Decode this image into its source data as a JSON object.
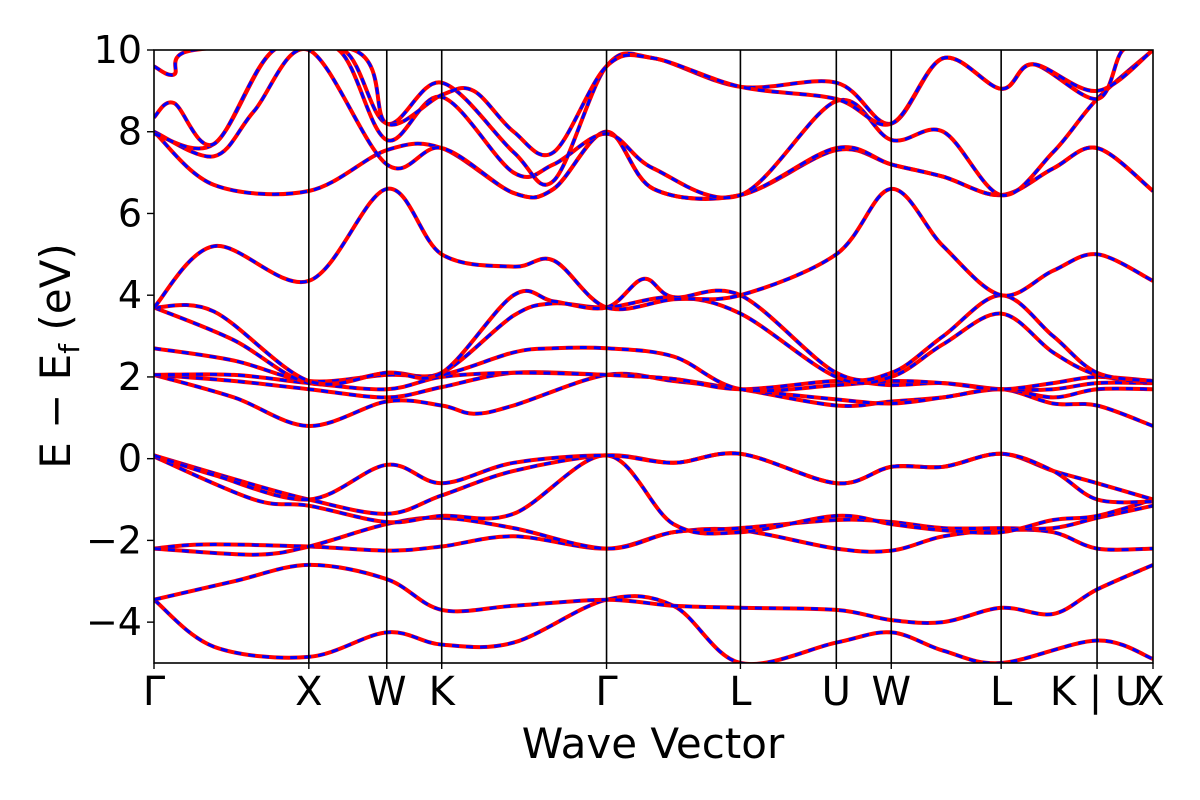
{
  "chart_data": {
    "type": "line",
    "title": "",
    "xlabel": "Wave Vector",
    "ylabel": "E − E",
    "ylabel_subscript": "f",
    "ylabel_unit": "(eV)",
    "ylim": [
      -5,
      10
    ],
    "yticks": [
      -4,
      -2,
      0,
      2,
      4,
      6,
      8,
      10
    ],
    "ytick_labels": [
      "−4",
      "−2",
      "0",
      "2",
      "4",
      "6",
      "8",
      "10"
    ],
    "xlim": [
      0,
      1
    ],
    "high_symmetry_points": [
      {
        "label": "Γ",
        "x": 0.0
      },
      {
        "label": "X",
        "x": 0.155
      },
      {
        "label": "W",
        "x": 0.233
      },
      {
        "label": "K",
        "x": 0.288
      },
      {
        "label": "Γ",
        "x": 0.453
      },
      {
        "label": "L",
        "x": 0.587
      },
      {
        "label": "U",
        "x": 0.683
      },
      {
        "label": "W",
        "x": 0.738
      },
      {
        "label": "L",
        "x": 0.848
      },
      {
        "label": "K | U",
        "x": 0.944
      },
      {
        "label": "X",
        "x": 1.0
      }
    ],
    "grid": false,
    "legend": "none",
    "series_colors": {
      "solid": "#ff0000",
      "dashed": "#0000ff"
    },
    "bands": [
      [
        [
          0.0,
          -3.45
        ],
        [
          0.06,
          -4.6
        ],
        [
          0.155,
          -4.85
        ],
        [
          0.233,
          -4.25
        ],
        [
          0.288,
          -4.55
        ],
        [
          0.36,
          -4.5
        ],
        [
          0.453,
          -3.45
        ],
        [
          0.52,
          -3.6
        ],
        [
          0.587,
          -5.0
        ],
        [
          0.683,
          -4.5
        ],
        [
          0.738,
          -4.25
        ],
        [
          0.79,
          -4.7
        ],
        [
          0.848,
          -5.0
        ],
        [
          0.944,
          -4.45
        ],
        [
          1.0,
          -4.9
        ]
      ],
      [
        [
          0.0,
          -3.45
        ],
        [
          0.08,
          -3.0
        ],
        [
          0.155,
          -2.6
        ],
        [
          0.233,
          -2.95
        ],
        [
          0.288,
          -3.7
        ],
        [
          0.36,
          -3.6
        ],
        [
          0.453,
          -3.45
        ],
        [
          0.52,
          -3.6
        ],
        [
          0.587,
          -3.65
        ],
        [
          0.683,
          -3.7
        ],
        [
          0.738,
          -3.95
        ],
        [
          0.79,
          -4.0
        ],
        [
          0.848,
          -3.65
        ],
        [
          0.9,
          -3.8
        ],
        [
          0.944,
          -3.2
        ],
        [
          1.0,
          -2.6
        ]
      ],
      [
        [
          0.0,
          -2.2
        ],
        [
          0.05,
          -2.1
        ],
        [
          0.155,
          -2.15
        ],
        [
          0.233,
          -2.25
        ],
        [
          0.288,
          -2.15
        ],
        [
          0.36,
          -1.9
        ],
        [
          0.453,
          -2.2
        ],
        [
          0.52,
          -1.8
        ],
        [
          0.587,
          -1.75
        ],
        [
          0.683,
          -2.2
        ],
        [
          0.738,
          -2.25
        ],
        [
          0.79,
          -1.9
        ],
        [
          0.848,
          -1.75
        ],
        [
          0.9,
          -1.8
        ],
        [
          0.944,
          -2.2
        ],
        [
          1.0,
          -2.2
        ]
      ],
      [
        [
          0.0,
          -2.2
        ],
        [
          0.1,
          -2.35
        ],
        [
          0.155,
          -2.15
        ],
        [
          0.233,
          -1.6
        ],
        [
          0.288,
          -1.45
        ],
        [
          0.36,
          -1.7
        ],
        [
          0.453,
          -2.2
        ],
        [
          0.52,
          -1.8
        ],
        [
          0.587,
          -1.7
        ],
        [
          0.683,
          -1.5
        ],
        [
          0.738,
          -1.55
        ],
        [
          0.79,
          -1.7
        ],
        [
          0.848,
          -1.7
        ],
        [
          0.9,
          -1.7
        ],
        [
          0.944,
          -1.45
        ],
        [
          1.0,
          -1.15
        ]
      ],
      [
        [
          0.0,
          0.05
        ],
        [
          0.1,
          -1.0
        ],
        [
          0.155,
          -1.15
        ],
        [
          0.233,
          -1.55
        ],
        [
          0.288,
          -1.4
        ],
        [
          0.36,
          -1.35
        ],
        [
          0.453,
          0.08
        ],
        [
          0.52,
          -1.6
        ],
        [
          0.587,
          -1.8
        ],
        [
          0.683,
          -1.4
        ],
        [
          0.738,
          -1.6
        ],
        [
          0.79,
          -1.75
        ],
        [
          0.848,
          -1.8
        ],
        [
          0.9,
          -1.5
        ],
        [
          0.944,
          -1.4
        ],
        [
          1.0,
          -1.0
        ]
      ],
      [
        [
          0.0,
          0.08
        ],
        [
          0.08,
          -0.5
        ],
        [
          0.155,
          -1.0
        ],
        [
          0.233,
          -1.35
        ],
        [
          0.288,
          -0.9
        ],
        [
          0.36,
          -0.3
        ],
        [
          0.453,
          0.08
        ],
        [
          0.52,
          -0.1
        ],
        [
          0.587,
          0.12
        ],
        [
          0.683,
          -0.6
        ],
        [
          0.738,
          -0.2
        ],
        [
          0.79,
          -0.2
        ],
        [
          0.848,
          0.12
        ],
        [
          0.9,
          -0.3
        ],
        [
          0.944,
          -0.6
        ],
        [
          1.0,
          -1.0
        ]
      ],
      [
        [
          0.0,
          0.08
        ],
        [
          0.06,
          -0.4
        ],
        [
          0.155,
          -1.0
        ],
        [
          0.233,
          -0.15
        ],
        [
          0.288,
          -0.6
        ],
        [
          0.36,
          -0.1
        ],
        [
          0.453,
          0.08
        ],
        [
          0.52,
          -0.1
        ],
        [
          0.587,
          0.12
        ],
        [
          0.683,
          -0.6
        ],
        [
          0.738,
          -0.2
        ],
        [
          0.79,
          -0.2
        ],
        [
          0.848,
          0.12
        ],
        [
          0.9,
          -0.3
        ],
        [
          0.944,
          -1.0
        ],
        [
          1.0,
          -1.05
        ]
      ],
      [
        [
          0.0,
          2.05
        ],
        [
          0.08,
          1.5
        ],
        [
          0.155,
          0.8
        ],
        [
          0.233,
          1.4
        ],
        [
          0.288,
          1.3
        ],
        [
          0.32,
          1.1
        ],
        [
          0.36,
          1.3
        ],
        [
          0.453,
          2.05
        ],
        [
          0.52,
          1.9
        ],
        [
          0.587,
          1.7
        ],
        [
          0.683,
          1.3
        ],
        [
          0.738,
          1.4
        ],
        [
          0.79,
          1.5
        ],
        [
          0.848,
          1.7
        ],
        [
          0.9,
          1.35
        ],
        [
          0.944,
          1.3
        ],
        [
          1.0,
          0.8
        ]
      ],
      [
        [
          0.0,
          2.05
        ],
        [
          0.08,
          1.9
        ],
        [
          0.155,
          1.7
        ],
        [
          0.233,
          1.5
        ],
        [
          0.288,
          1.75
        ],
        [
          0.36,
          2.1
        ],
        [
          0.453,
          2.05
        ],
        [
          0.52,
          1.95
        ],
        [
          0.587,
          1.7
        ],
        [
          0.683,
          1.45
        ],
        [
          0.738,
          1.35
        ],
        [
          0.79,
          1.5
        ],
        [
          0.848,
          1.7
        ],
        [
          0.9,
          1.5
        ],
        [
          0.944,
          1.7
        ],
        [
          1.0,
          1.7
        ]
      ],
      [
        [
          0.0,
          2.05
        ],
        [
          0.08,
          2.05
        ],
        [
          0.155,
          1.85
        ],
        [
          0.233,
          1.7
        ],
        [
          0.288,
          2.0
        ],
        [
          0.36,
          2.1
        ],
        [
          0.453,
          2.05
        ],
        [
          0.52,
          1.95
        ],
        [
          0.587,
          1.7
        ],
        [
          0.683,
          1.9
        ],
        [
          0.738,
          1.8
        ],
        [
          0.79,
          1.85
        ],
        [
          0.848,
          1.7
        ],
        [
          0.9,
          1.7
        ],
        [
          0.944,
          1.85
        ],
        [
          1.0,
          1.85
        ]
      ],
      [
        [
          0.0,
          2.7
        ],
        [
          0.08,
          2.4
        ],
        [
          0.155,
          1.9
        ],
        [
          0.233,
          2.05
        ],
        [
          0.288,
          2.05
        ],
        [
          0.36,
          2.6
        ],
        [
          0.4,
          2.7
        ],
        [
          0.453,
          2.7
        ],
        [
          0.52,
          2.5
        ],
        [
          0.587,
          1.7
        ],
        [
          0.683,
          1.8
        ],
        [
          0.738,
          1.9
        ],
        [
          0.79,
          1.85
        ],
        [
          0.848,
          1.7
        ],
        [
          0.9,
          1.85
        ],
        [
          0.944,
          2.0
        ],
        [
          1.0,
          1.9
        ]
      ],
      [
        [
          0.0,
          3.7
        ],
        [
          0.08,
          2.9
        ],
        [
          0.155,
          1.85
        ],
        [
          0.233,
          2.1
        ],
        [
          0.288,
          2.1
        ],
        [
          0.36,
          3.5
        ],
        [
          0.4,
          3.8
        ],
        [
          0.453,
          3.7
        ],
        [
          0.52,
          3.95
        ],
        [
          0.587,
          3.55
        ],
        [
          0.683,
          2.0
        ],
        [
          0.738,
          2.0
        ],
        [
          0.79,
          2.8
        ],
        [
          0.848,
          3.55
        ],
        [
          0.9,
          2.6
        ],
        [
          0.944,
          2.05
        ],
        [
          1.0,
          1.85
        ]
      ],
      [
        [
          0.0,
          3.7
        ],
        [
          0.06,
          3.6
        ],
        [
          0.155,
          1.9
        ],
        [
          0.233,
          2.1
        ],
        [
          0.288,
          2.1
        ],
        [
          0.36,
          4.0
        ],
        [
          0.4,
          3.85
        ],
        [
          0.453,
          3.7
        ],
        [
          0.49,
          4.4
        ],
        [
          0.52,
          3.95
        ],
        [
          0.587,
          4.0
        ],
        [
          0.683,
          2.1
        ],
        [
          0.738,
          2.1
        ],
        [
          0.79,
          3.0
        ],
        [
          0.848,
          4.0
        ],
        [
          0.9,
          3.0
        ],
        [
          0.944,
          2.1
        ],
        [
          1.0,
          1.9
        ]
      ],
      [
        [
          0.0,
          3.7
        ],
        [
          0.06,
          5.2
        ],
        [
          0.155,
          4.35
        ],
        [
          0.233,
          6.6
        ],
        [
          0.288,
          5.0
        ],
        [
          0.36,
          4.7
        ],
        [
          0.4,
          4.85
        ],
        [
          0.453,
          3.7
        ],
        [
          0.52,
          3.9
        ],
        [
          0.587,
          4.0
        ],
        [
          0.683,
          5.0
        ],
        [
          0.738,
          6.6
        ],
        [
          0.79,
          5.2
        ],
        [
          0.848,
          4.0
        ],
        [
          0.9,
          4.6
        ],
        [
          0.944,
          5.0
        ],
        [
          1.0,
          4.35
        ]
      ],
      [
        [
          0.0,
          8.0
        ],
        [
          0.06,
          6.7
        ],
        [
          0.155,
          6.55
        ],
        [
          0.233,
          7.55
        ],
        [
          0.288,
          7.6
        ],
        [
          0.36,
          6.5
        ],
        [
          0.4,
          6.6
        ],
        [
          0.453,
          8.0
        ],
        [
          0.5,
          6.6
        ],
        [
          0.587,
          6.45
        ],
        [
          0.683,
          7.55
        ],
        [
          0.738,
          7.2
        ],
        [
          0.79,
          6.9
        ],
        [
          0.848,
          6.45
        ],
        [
          0.9,
          7.1
        ],
        [
          0.944,
          7.6
        ],
        [
          1.0,
          6.55
        ]
      ],
      [
        [
          0.0,
          8.0
        ],
        [
          0.06,
          7.4
        ],
        [
          0.1,
          8.5
        ],
        [
          0.155,
          10.0
        ],
        [
          0.233,
          7.2
        ],
        [
          0.288,
          7.6
        ],
        [
          0.36,
          6.5
        ],
        [
          0.4,
          6.6
        ],
        [
          0.453,
          8.0
        ],
        [
          0.5,
          6.6
        ],
        [
          0.587,
          6.45
        ],
        [
          0.683,
          7.6
        ],
        [
          0.738,
          7.2
        ],
        [
          0.79,
          6.9
        ],
        [
          0.848,
          6.45
        ],
        [
          0.9,
          7.1
        ],
        [
          0.944,
          7.6
        ],
        [
          1.0,
          6.55
        ]
      ],
      [
        [
          0.0,
          7.95
        ],
        [
          0.06,
          7.7
        ],
        [
          0.12,
          10.0
        ],
        [
          0.185,
          10.0
        ],
        [
          0.233,
          7.8
        ],
        [
          0.288,
          8.85
        ],
        [
          0.36,
          7.0
        ],
        [
          0.4,
          7.2
        ],
        [
          0.453,
          7.95
        ],
        [
          0.5,
          7.1
        ],
        [
          0.587,
          6.45
        ],
        [
          0.683,
          8.75
        ],
        [
          0.738,
          7.8
        ],
        [
          0.79,
          8.0
        ],
        [
          0.848,
          6.45
        ],
        [
          0.9,
          7.5
        ],
        [
          0.944,
          8.8
        ],
        [
          1.0,
          10.0
        ]
      ],
      [
        [
          0.0,
          8.35
        ],
        [
          0.02,
          8.7
        ],
        [
          0.06,
          7.7
        ],
        [
          0.12,
          10.0
        ],
        [
          0.19,
          10.0
        ],
        [
          0.233,
          8.2
        ],
        [
          0.288,
          9.2
        ],
        [
          0.36,
          7.5
        ],
        [
          0.4,
          6.8
        ],
        [
          0.453,
          9.6
        ],
        [
          0.5,
          9.8
        ],
        [
          0.587,
          9.1
        ],
        [
          0.683,
          9.2
        ],
        [
          0.738,
          8.2
        ],
        [
          0.79,
          9.8
        ],
        [
          0.848,
          9.05
        ],
        [
          0.88,
          9.65
        ],
        [
          0.944,
          8.8
        ],
        [
          0.97,
          10.0
        ],
        [
          1.0,
          10.0
        ]
      ],
      [
        [
          0.0,
          9.6
        ],
        [
          0.02,
          9.4
        ],
        [
          0.04,
          10.0
        ],
        [
          0.2,
          10.0
        ],
        [
          0.233,
          8.2
        ],
        [
          0.288,
          8.9
        ],
        [
          0.32,
          9.0
        ],
        [
          0.36,
          8.0
        ],
        [
          0.4,
          7.5
        ],
        [
          0.453,
          9.6
        ],
        [
          0.5,
          9.8
        ],
        [
          0.587,
          9.1
        ],
        [
          0.683,
          8.8
        ],
        [
          0.738,
          8.2
        ],
        [
          0.79,
          9.8
        ],
        [
          0.848,
          9.05
        ],
        [
          0.88,
          9.65
        ],
        [
          0.944,
          9.0
        ],
        [
          1.0,
          10.0
        ]
      ]
    ]
  }
}
